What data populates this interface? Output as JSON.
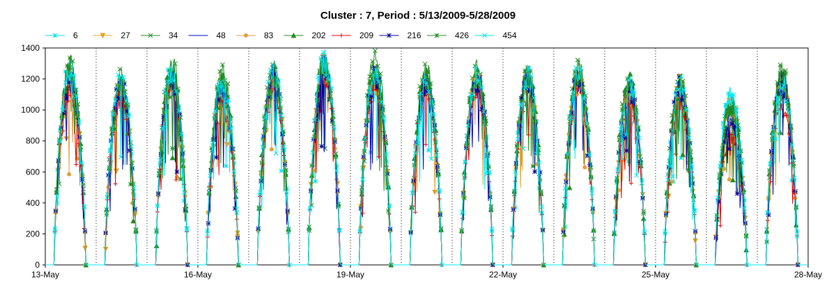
{
  "chart_data": {
    "type": "line",
    "title": "Cluster : 7, Period : 5/13/2009-5/28/2009",
    "xlabel": "",
    "ylabel": "",
    "xlim": [
      "2009-05-13",
      "2009-05-28"
    ],
    "ylim": [
      0,
      1400
    ],
    "x_ticks": [
      "13-May",
      "16-May",
      "19-May",
      "22-May",
      "25-May",
      "28-May"
    ],
    "y_ticks": [
      0,
      200,
      400,
      600,
      800,
      1000,
      1200,
      1400
    ],
    "grid": "vertical dotted at day boundaries",
    "legend_position": "top",
    "day_dates": [
      "2009-05-13",
      "2009-05-14",
      "2009-05-15",
      "2009-05-16",
      "2009-05-17",
      "2009-05-18",
      "2009-05-19",
      "2009-05-20",
      "2009-05-21",
      "2009-05-22",
      "2009-05-23",
      "2009-05-24",
      "2009-05-25",
      "2009-05-26",
      "2009-05-27"
    ],
    "series": [
      {
        "name": "6",
        "color": "#00e5ee",
        "marker": "star",
        "daily_peak": [
          1350,
          1250,
          1320,
          1230,
          1320,
          1380,
          1330,
          1260,
          1260,
          1290,
          1300,
          1220,
          1240,
          1180,
          1230
        ]
      },
      {
        "name": "27",
        "color": "#e0a020",
        "marker": "triangle-down",
        "daily_peak": [
          1260,
          1200,
          1280,
          1150,
          1300,
          1360,
          1290,
          1230,
          1250,
          1250,
          1270,
          1200,
          1230,
          1080,
          1200
        ]
      },
      {
        "name": "34",
        "color": "#228b22",
        "marker": "x",
        "daily_peak": [
          1370,
          1270,
          1380,
          1300,
          1330,
          1380,
          1400,
          1330,
          1330,
          1320,
          1340,
          1260,
          1230,
          1110,
          1310
        ]
      },
      {
        "name": "48",
        "color": "#0000cc",
        "marker": "none",
        "daily_peak": [
          1260,
          1220,
          1260,
          1200,
          1290,
          1310,
          1290,
          1230,
          1230,
          1260,
          1270,
          1180,
          1220,
          1020,
          1260
        ]
      },
      {
        "name": "83",
        "color": "#e0a040",
        "marker": "circle",
        "daily_peak": [
          1250,
          1200,
          1270,
          1150,
          1280,
          1330,
          1260,
          1230,
          1260,
          1250,
          1250,
          1190,
          1200,
          950,
          1200
        ]
      },
      {
        "name": "202",
        "color": "#228b22",
        "marker": "triangle",
        "daily_peak": [
          1300,
          1260,
          1310,
          1250,
          1320,
          1380,
          1330,
          1290,
          1290,
          1300,
          1330,
          1250,
          1220,
          1080,
          1300
        ]
      },
      {
        "name": "209",
        "color": "#e00000",
        "marker": "plus",
        "daily_peak": [
          1180,
          1150,
          1240,
          1100,
          1200,
          1300,
          1220,
          1200,
          1160,
          1150,
          1180,
          1110,
          1120,
          880,
          1100
        ]
      },
      {
        "name": "216",
        "color": "#000099",
        "marker": "asterisk",
        "daily_peak": [
          1250,
          1230,
          1280,
          1200,
          1300,
          1340,
          1290,
          1250,
          1260,
          1270,
          1280,
          1210,
          1220,
          980,
          1250
        ]
      },
      {
        "name": "426",
        "color": "#228b22",
        "marker": "asterisk",
        "daily_peak": [
          1350,
          1250,
          1330,
          1280,
          1310,
          1370,
          1320,
          1280,
          1300,
          1300,
          1330,
          1240,
          1230,
          1100,
          1300
        ]
      },
      {
        "name": "454",
        "color": "#00e5ee",
        "marker": "x",
        "daily_peak": [
          1330,
          1280,
          1320,
          1250,
          1330,
          1400,
          1320,
          1270,
          1290,
          1300,
          1310,
          1230,
          1230,
          1170,
          1250
        ]
      }
    ]
  }
}
